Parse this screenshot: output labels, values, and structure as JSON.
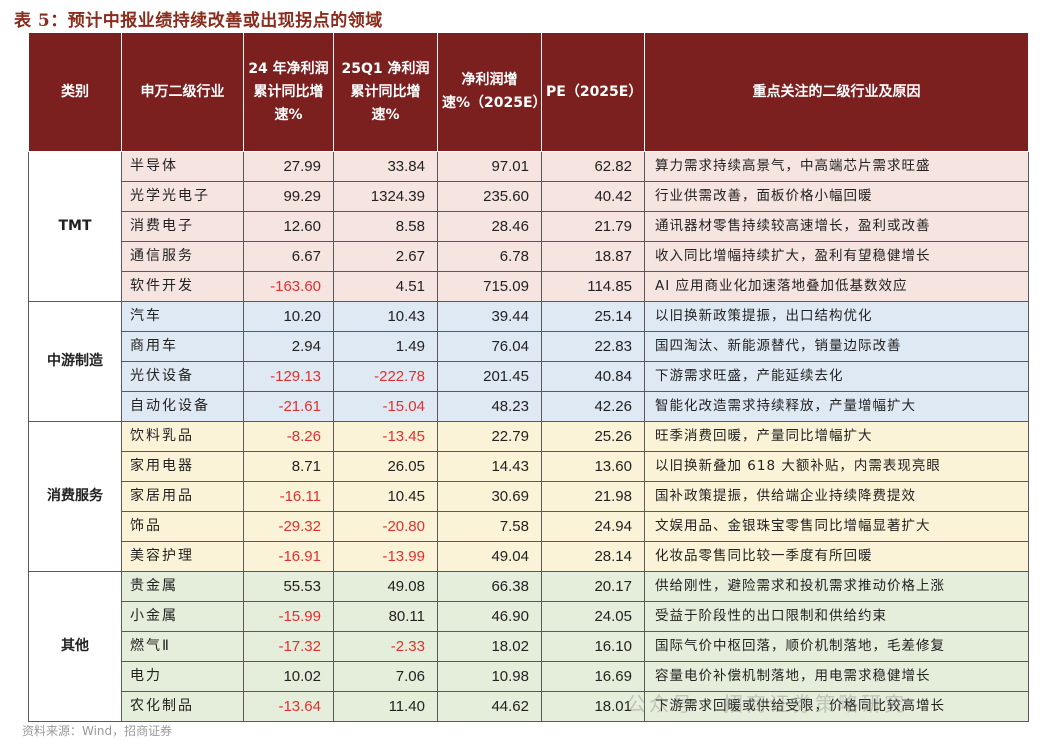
{
  "title": "表 5：预计中报业绩持续改善或出现拐点的领域",
  "headers": {
    "category": "类别",
    "industry": "申万二级行业",
    "profit24": "24 年净利润累计同比增速%",
    "profit25q1": "25Q1 净利润累计同比增速%",
    "growth25e": "净利润增速%（2025E）",
    "pe": "PE（2025E）",
    "reason": "重点关注的二级行业及原因"
  },
  "groups": [
    {
      "category": "TMT",
      "rows": [
        {
          "industry": "半导体",
          "p24": "27.99",
          "p25q1": "33.84",
          "g25e": "97.01",
          "pe": "62.82",
          "reason": "算力需求持续高景气，中高端芯片需求旺盛"
        },
        {
          "industry": "光学光电子",
          "p24": "99.29",
          "p25q1": "1324.39",
          "g25e": "235.60",
          "pe": "40.42",
          "reason": "行业供需改善，面板价格小幅回暖"
        },
        {
          "industry": "消费电子",
          "p24": "12.60",
          "p25q1": "8.58",
          "g25e": "28.46",
          "pe": "21.79",
          "reason": "通讯器材零售持续较高速增长，盈利或改善"
        },
        {
          "industry": "通信服务",
          "p24": "6.67",
          "p25q1": "2.67",
          "g25e": "6.78",
          "pe": "18.87",
          "reason": "收入同比增幅持续扩大，盈利有望稳健增长"
        },
        {
          "industry": "软件开发",
          "p24": "-163.60",
          "p25q1": "4.51",
          "g25e": "715.09",
          "pe": "114.85",
          "reason": "AI 应用商业化加速落地叠加低基数效应"
        }
      ]
    },
    {
      "category": "中游制造",
      "rows": [
        {
          "industry": "汽车",
          "p24": "10.20",
          "p25q1": "10.43",
          "g25e": "39.44",
          "pe": "25.14",
          "reason": "以旧换新政策提振，出口结构优化"
        },
        {
          "industry": "商用车",
          "p24": "2.94",
          "p25q1": "1.49",
          "g25e": "76.04",
          "pe": "22.83",
          "reason": "国四淘汰、新能源替代，销量边际改善"
        },
        {
          "industry": "光伏设备",
          "p24": "-129.13",
          "p25q1": "-222.78",
          "g25e": "201.45",
          "pe": "40.84",
          "reason": "下游需求旺盛，产能延续去化"
        },
        {
          "industry": "自动化设备",
          "p24": "-21.61",
          "p25q1": "-15.04",
          "g25e": "48.23",
          "pe": "42.26",
          "reason": "智能化改造需求持续释放，产量增幅扩大"
        }
      ]
    },
    {
      "category": "消费服务",
      "rows": [
        {
          "industry": "饮料乳品",
          "p24": "-8.26",
          "p25q1": "-13.45",
          "g25e": "22.79",
          "pe": "25.26",
          "reason": "旺季消费回暖，产量同比增幅扩大"
        },
        {
          "industry": "家用电器",
          "p24": "8.71",
          "p25q1": "26.05",
          "g25e": "14.43",
          "pe": "13.60",
          "reason": "以旧换新叠加 618 大额补贴，内需表现亮眼"
        },
        {
          "industry": "家居用品",
          "p24": "-16.11",
          "p25q1": "10.45",
          "g25e": "30.69",
          "pe": "21.98",
          "reason": "国补政策提振，供给端企业持续降费提效"
        },
        {
          "industry": "饰品",
          "p24": "-29.32",
          "p25q1": "-20.80",
          "g25e": "7.58",
          "pe": "24.94",
          "reason": "文娱用品、金银珠宝零售同比增幅显著扩大"
        },
        {
          "industry": "美容护理",
          "p24": "-16.91",
          "p25q1": "-13.99",
          "g25e": "49.04",
          "pe": "28.14",
          "reason": "化妆品零售同比较一季度有所回暖"
        }
      ]
    },
    {
      "category": "其他",
      "rows": [
        {
          "industry": "贵金属",
          "p24": "55.53",
          "p25q1": "49.08",
          "g25e": "66.38",
          "pe": "20.17",
          "reason": "供给刚性，避险需求和投机需求推动价格上涨"
        },
        {
          "industry": "小金属",
          "p24": "-15.99",
          "p25q1": "80.11",
          "g25e": "46.90",
          "pe": "24.05",
          "reason": "受益于阶段性的出口限制和供给约束"
        },
        {
          "industry": "燃气Ⅱ",
          "p24": "-17.32",
          "p25q1": "-2.33",
          "g25e": "18.02",
          "pe": "16.10",
          "reason": "国际气价中枢回落，顺价机制落地，毛差修复"
        },
        {
          "industry": "电力",
          "p24": "10.02",
          "p25q1": "7.06",
          "g25e": "10.98",
          "pe": "16.69",
          "reason": "容量电价补偿机制落地，用电需求稳健增长"
        },
        {
          "industry": "农化制品",
          "p24": "-13.64",
          "p25q1": "11.40",
          "g25e": "44.62",
          "pe": "18.01",
          "reason": "下游需求回暖或供给受限，价格同比较高增长"
        }
      ]
    }
  ],
  "source": "资料来源：Wind，招商证券",
  "watermark": "公众号 · 招商证券策略研究"
}
